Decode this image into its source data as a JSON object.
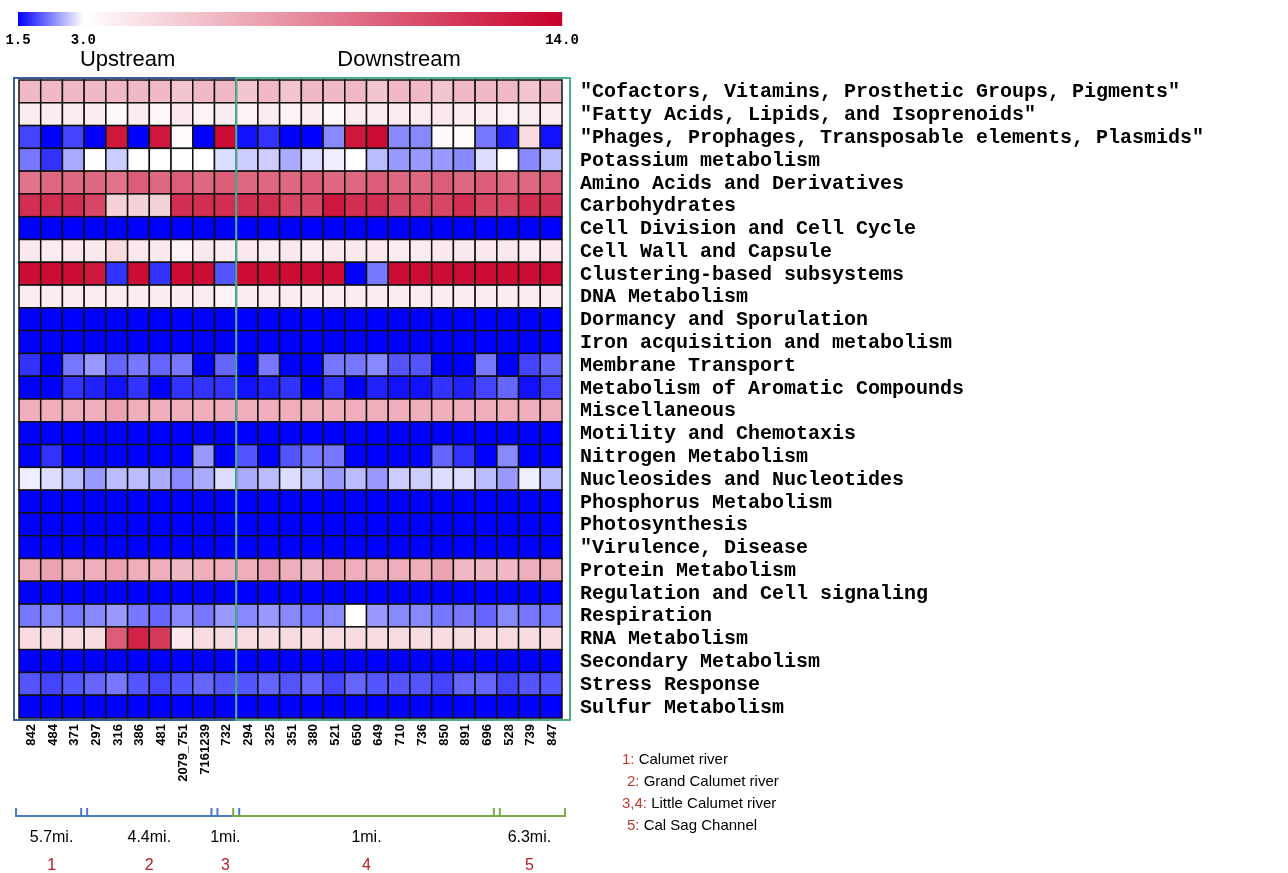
{
  "chart_data": {
    "type": "heatmap",
    "categories": [
      "842",
      "484",
      "371",
      "297",
      "316",
      "386",
      "481",
      "2079_751",
      "7161239",
      "732",
      "294",
      "325",
      "351",
      "380",
      "521",
      "650",
      "649",
      "710",
      "736",
      "850",
      "891",
      "696",
      "528",
      "739",
      "847"
    ],
    "y_categories": [
      "\"Cofactors, Vitamins, Prosthetic Groups, Pigments\"",
      "\"Fatty Acids, Lipids, and Isoprenoids\"",
      "\"Phages, Prophages, Transposable elements, Plasmids\"",
      "Potassium metabolism",
      "Amino Acids and Derivatives",
      "Carbohydrates",
      "Cell Division and Cell Cycle",
      "Cell Wall and Capsule",
      "Clustering-based subsystems",
      "DNA Metabolism",
      "Dormancy and Sporulation",
      "Iron acquisition and metabolism",
      "Membrane Transport",
      "Metabolism of Aromatic Compounds",
      "Miscellaneous",
      "Motility and Chemotaxis",
      "Nitrogen Metabolism",
      "Nucleosides and Nucleotides",
      "Phosphorus Metabolism",
      "Photosynthesis",
      "\"Virulence, Disease",
      "Protein Metabolism",
      "Regulation and Cell signaling",
      "Respiration",
      "RNA Metabolism",
      "Secondary Metabolism",
      "Stress Response",
      "Sulfur Metabolism"
    ],
    "cells": [
      [
        6,
        6,
        6,
        6,
        6,
        6,
        6,
        5.5,
        6,
        6,
        5.5,
        6,
        5.5,
        6,
        6,
        6,
        5.5,
        6,
        6,
        5.5,
        6,
        6,
        6,
        5.5,
        6
      ],
      [
        3.8,
        3.8,
        3.8,
        3.8,
        3.3,
        3.8,
        3.3,
        4,
        3.5,
        3.8,
        3.5,
        3.8,
        3.5,
        3.8,
        3.3,
        3.8,
        3.8,
        3.8,
        3.8,
        4,
        3.8,
        3.8,
        3.5,
        3.8,
        3.8
      ],
      [
        1.9,
        1.5,
        1.9,
        1.5,
        13,
        1.5,
        13,
        3.2,
        1.5,
        13.5,
        1.6,
        1.8,
        1.5,
        1.5,
        2.3,
        13,
        13.5,
        2.3,
        2.3,
        3.3,
        3.2,
        2.2,
        1.7,
        4.5,
        1.6
      ],
      [
        2.2,
        1.8,
        2.5,
        3,
        2.7,
        3,
        3,
        3,
        3,
        2.8,
        2.7,
        2.7,
        2.5,
        2.8,
        2.9,
        3,
        2.6,
        2.4,
        2.4,
        2.4,
        2.3,
        2.8,
        3,
        2.3,
        2.6
      ],
      [
        9,
        9.5,
        9.5,
        9.5,
        9,
        10,
        9.5,
        10,
        9.5,
        10,
        9.5,
        9.5,
        9.5,
        10,
        9.5,
        9.5,
        10,
        9.5,
        9.5,
        10,
        9.5,
        10,
        9.5,
        9.5,
        10
      ],
      [
        12,
        12,
        12,
        11,
        5,
        5,
        5,
        12,
        12,
        12,
        12,
        12,
        11,
        11,
        13,
        12,
        12,
        11,
        11,
        11,
        12,
        11,
        11,
        12,
        12
      ],
      [
        1.5,
        1.5,
        1.5,
        1.5,
        1.5,
        1.5,
        1.5,
        1.5,
        1.5,
        1.5,
        1.5,
        1.5,
        1.5,
        1.5,
        1.5,
        1.5,
        1.5,
        1.5,
        1.5,
        1.5,
        1.5,
        1.5,
        1.5,
        1.5,
        1.5
      ],
      [
        4,
        3.8,
        4,
        4,
        4.5,
        4,
        4,
        3.5,
        4,
        3.8,
        4,
        3.8,
        4,
        3.8,
        4,
        4,
        4,
        3.8,
        3.8,
        4,
        4,
        4,
        4,
        3.8,
        4
      ],
      [
        13.5,
        13.5,
        13.5,
        13,
        1.8,
        13.5,
        1.8,
        13.5,
        13.5,
        2,
        13.5,
        13.5,
        13.5,
        13.5,
        13.5,
        1.5,
        2.2,
        13.5,
        13.5,
        13.5,
        13.5,
        13.5,
        13.5,
        13.5,
        13.5
      ],
      [
        3.8,
        3.8,
        3.8,
        3.8,
        3.8,
        3.8,
        3.8,
        3.8,
        3.8,
        3.5,
        3.8,
        3.8,
        3.8,
        3.8,
        3.8,
        3.8,
        3.8,
        3.8,
        3.8,
        3.8,
        3.8,
        3.8,
        3.8,
        3.8,
        3.8
      ],
      [
        1.5,
        1.5,
        1.5,
        1.5,
        1.5,
        1.5,
        1.5,
        1.5,
        1.5,
        1.5,
        1.5,
        1.5,
        1.5,
        1.5,
        1.5,
        1.5,
        1.5,
        1.5,
        1.5,
        1.5,
        1.5,
        1.5,
        1.5,
        1.5,
        1.5
      ],
      [
        1.5,
        1.5,
        1.5,
        1.5,
        1.5,
        1.5,
        1.5,
        1.5,
        1.5,
        1.5,
        1.5,
        1.5,
        1.5,
        1.5,
        1.5,
        1.5,
        1.5,
        1.5,
        1.5,
        1.5,
        1.5,
        1.5,
        1.5,
        1.5,
        1.5
      ],
      [
        1.8,
        1.5,
        2.2,
        2.4,
        2.1,
        2.2,
        2.1,
        2.2,
        1.5,
        2.1,
        1.5,
        2.2,
        1.5,
        1.5,
        2.2,
        2.2,
        2.3,
        2,
        2,
        1.5,
        1.5,
        2.2,
        1.5,
        1.9,
        2.1
      ],
      [
        1.5,
        1.5,
        1.8,
        1.7,
        1.6,
        1.8,
        1.5,
        1.8,
        1.8,
        1.8,
        1.6,
        1.7,
        1.8,
        1.5,
        1.8,
        1.5,
        1.7,
        1.6,
        1.6,
        1.8,
        1.7,
        1.9,
        2.1,
        1.6,
        1.9
      ],
      [
        6.5,
        6.5,
        6.5,
        6.5,
        7,
        6.5,
        6.5,
        6.5,
        6.5,
        6.5,
        6.5,
        6.5,
        6.5,
        6.5,
        6.5,
        6.5,
        6.5,
        6.5,
        6.5,
        6.5,
        6.5,
        6.5,
        6.5,
        6.5,
        6.5
      ],
      [
        1.5,
        1.5,
        1.5,
        1.5,
        1.5,
        1.5,
        1.5,
        1.5,
        1.5,
        1.5,
        1.5,
        1.5,
        1.5,
        1.5,
        1.5,
        1.5,
        1.5,
        1.5,
        1.5,
        1.5,
        1.5,
        1.5,
        1.5,
        1.5,
        1.5
      ],
      [
        1.5,
        1.8,
        1.5,
        1.5,
        1.5,
        1.5,
        1.5,
        1.5,
        2.4,
        1.5,
        2,
        1.5,
        2,
        2.2,
        2.2,
        1.5,
        1.5,
        1.5,
        1.5,
        2.1,
        1.8,
        1.5,
        2.3,
        1.5,
        1.5
      ],
      [
        2.9,
        2.8,
        2.6,
        2.4,
        2.6,
        2.6,
        2.5,
        2.3,
        2.5,
        2.8,
        2.5,
        2.6,
        2.8,
        2.6,
        2.4,
        2.6,
        2.4,
        2.7,
        2.7,
        2.8,
        2.8,
        2.6,
        2.4,
        2.9,
        2.6
      ],
      [
        1.5,
        1.5,
        1.5,
        1.5,
        1.5,
        1.5,
        1.5,
        1.5,
        1.5,
        1.5,
        1.5,
        1.5,
        1.5,
        1.5,
        1.5,
        1.5,
        1.5,
        1.5,
        1.5,
        1.5,
        1.5,
        1.5,
        1.5,
        1.5,
        1.5
      ],
      [
        1.5,
        1.5,
        1.5,
        1.5,
        1.5,
        1.5,
        1.5,
        1.5,
        1.5,
        1.5,
        1.5,
        1.5,
        1.5,
        1.5,
        1.5,
        1.5,
        1.5,
        1.5,
        1.5,
        1.5,
        1.5,
        1.5,
        1.5,
        1.5,
        1.5
      ],
      [
        1.5,
        1.5,
        1.5,
        1.5,
        1.5,
        1.5,
        1.5,
        1.5,
        1.5,
        1.5,
        1.5,
        1.5,
        1.5,
        1.5,
        1.5,
        1.5,
        1.5,
        1.5,
        1.5,
        1.5,
        1.5,
        1.5,
        1.5,
        1.5,
        1.5
      ],
      [
        6.5,
        7,
        6.5,
        6.5,
        7,
        6.5,
        6.5,
        6,
        6.5,
        6.5,
        6.5,
        7,
        6.5,
        6,
        7,
        6.5,
        6.5,
        6.5,
        6.5,
        7,
        6,
        6,
        6,
        6.5,
        6.5
      ],
      [
        1.5,
        1.5,
        1.5,
        1.5,
        1.5,
        1.5,
        1.5,
        1.5,
        1.5,
        1.5,
        1.5,
        1.5,
        1.5,
        1.5,
        1.5,
        1.5,
        1.5,
        1.5,
        1.5,
        1.5,
        1.5,
        1.5,
        1.5,
        1.5,
        1.5
      ],
      [
        2.2,
        2.3,
        2.2,
        2.3,
        2.4,
        2.2,
        2.1,
        2.3,
        2.2,
        2.4,
        2.3,
        2.4,
        2.3,
        2.2,
        2.3,
        3,
        2.4,
        2.3,
        2.3,
        2.2,
        2.2,
        2.1,
        2.3,
        2.2,
        2.2
      ],
      [
        4.5,
        4.5,
        4.5,
        4.5,
        10,
        12.5,
        11.5,
        4,
        4.5,
        4.5,
        4.5,
        4.5,
        4.5,
        4.5,
        4.5,
        4.5,
        4.5,
        4.5,
        4.5,
        4.5,
        4.5,
        4.5,
        4.5,
        4.5,
        4.5
      ],
      [
        1.5,
        1.5,
        1.5,
        1.5,
        1.5,
        1.5,
        1.5,
        1.5,
        1.5,
        1.5,
        1.5,
        1.5,
        1.5,
        1.5,
        1.5,
        1.5,
        1.5,
        1.5,
        1.5,
        1.5,
        1.5,
        1.5,
        1.5,
        1.5,
        1.5
      ],
      [
        2,
        1.9,
        2,
        2.1,
        2.2,
        2,
        1.9,
        2,
        2.1,
        2,
        2,
        2.1,
        2,
        2.1,
        1.9,
        2.1,
        2,
        2,
        2,
        1.9,
        2.1,
        2.1,
        1.9,
        2,
        2
      ],
      [
        1.5,
        1.5,
        1.5,
        1.5,
        1.5,
        1.5,
        1.5,
        1.5,
        1.5,
        1.5,
        1.5,
        1.5,
        1.5,
        1.5,
        1.5,
        1.5,
        1.5,
        1.5,
        1.5,
        1.5,
        1.5,
        1.5,
        1.5,
        1.5,
        1.5
      ]
    ],
    "clim": [
      1.5,
      14.0
    ],
    "cticks": [
      1.5,
      {
        "value": 3.0,
        "label": "3.0"
      },
      {
        "value": 14.0,
        "label": "14.0"
      }
    ],
    "annotations": [
      "Upstream",
      "Downstream",
      "5.7mi.",
      "4.4mi.",
      "1mi.",
      "1mi.",
      "6.3mi.",
      "1",
      "2",
      "3",
      "4",
      "5",
      "1: Calumet river",
      "2: Grand Calumet river",
      "3,4: Little Calumet river",
      "5: Cal Sag Channel"
    ]
  }
}
